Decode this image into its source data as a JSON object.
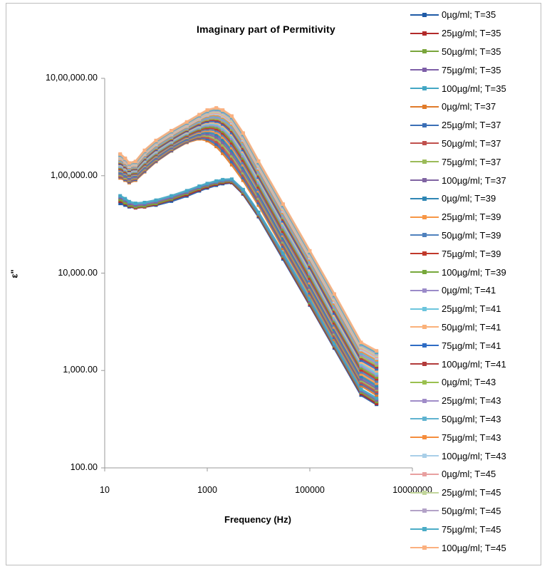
{
  "chart_data": {
    "type": "line",
    "title": "Imaginary part of Permitivity",
    "xlabel": "Frequency (Hz)",
    "ylabel": "ε\"",
    "x_scale": "log",
    "y_scale": "log",
    "xlim": [
      10,
      10000000
    ],
    "ylim": [
      100,
      1000000
    ],
    "x_ticks": [
      "10",
      "1000",
      "100000",
      "10000000"
    ],
    "y_ticks": [
      "100.00",
      "1,000.00",
      "10,000.00",
      "1,00,000.00",
      "10,00,000.00"
    ],
    "grid": false,
    "legend_position": "right",
    "x": [
      20,
      25,
      30,
      40,
      60,
      100,
      200,
      400,
      700,
      1000,
      1500,
      2000,
      3000,
      5000,
      10000,
      30000,
      100000,
      300000,
      1000000,
      2000000
    ],
    "series": [
      {
        "name": "0µg/ml; T=35",
        "color": "#1f5aa6",
        "values": [
          52000,
          50000,
          48000,
          47000,
          48000,
          50000,
          55000,
          62000,
          70000,
          75000,
          80000,
          83000,
          85000,
          65000,
          38000,
          14000,
          4700,
          1700,
          560,
          450
        ]
      },
      {
        "name": "25µg/ml; T=35",
        "color": "#b22a2a",
        "values": [
          55000,
          52000,
          49000,
          47000,
          48000,
          51000,
          57000,
          64000,
          72000,
          77000,
          82000,
          85000,
          86000,
          66000,
          39000,
          14500,
          4800,
          1750,
          580,
          460
        ]
      },
      {
        "name": "50µg/ml; T=35",
        "color": "#7aa53c",
        "values": [
          57000,
          53000,
          50000,
          48000,
          49000,
          52000,
          58000,
          66000,
          74000,
          79000,
          84000,
          87000,
          88000,
          68000,
          40000,
          15000,
          5000,
          1800,
          600,
          480
        ]
      },
      {
        "name": "75µg/ml; T=35",
        "color": "#7e5fa8",
        "values": [
          60000,
          56000,
          52000,
          50000,
          51000,
          54000,
          60000,
          68000,
          76000,
          81000,
          86000,
          89000,
          90000,
          70000,
          41000,
          15500,
          5200,
          1850,
          620,
          500
        ]
      },
      {
        "name": "100µg/ml; T=35",
        "color": "#44a7c4",
        "values": [
          62000,
          58000,
          54000,
          52000,
          53000,
          56000,
          62000,
          70000,
          78000,
          83000,
          88000,
          91000,
          92000,
          72000,
          42000,
          16000,
          5400,
          1900,
          640,
          520
        ]
      },
      {
        "name": "0µg/ml; T=37",
        "color": "#e07b2a",
        "values": [
          95000,
          90000,
          85000,
          90000,
          110000,
          140000,
          180000,
          220000,
          240000,
          230000,
          200000,
          170000,
          130000,
          90000,
          50000,
          18000,
          6000,
          2100,
          700,
          560
        ]
      },
      {
        "name": "25µg/ml; T=37",
        "color": "#3b6fb6",
        "values": [
          98000,
          92000,
          87000,
          92000,
          112000,
          142000,
          182000,
          224000,
          246000,
          240000,
          212000,
          182000,
          140000,
          96000,
          53000,
          19000,
          6300,
          2200,
          730,
          590
        ]
      },
      {
        "name": "50µg/ml; T=37",
        "color": "#c0504d",
        "values": [
          100000,
          94000,
          89000,
          94000,
          115000,
          145000,
          186000,
          228000,
          252000,
          250000,
          225000,
          195000,
          150000,
          102000,
          56000,
          20000,
          6600,
          2300,
          760,
          610
        ]
      },
      {
        "name": "75µg/ml; T=37",
        "color": "#9bbb59",
        "values": [
          103000,
          96000,
          91000,
          96000,
          118000,
          148000,
          190000,
          232000,
          258000,
          260000,
          238000,
          208000,
          160000,
          108000,
          59000,
          21000,
          6900,
          2400,
          790,
          640
        ]
      },
      {
        "name": "100µg/ml; T=37",
        "color": "#8064a2",
        "values": [
          106000,
          99000,
          93000,
          98000,
          121000,
          151000,
          194000,
          236000,
          264000,
          270000,
          250000,
          220000,
          170000,
          114000,
          62000,
          22000,
          7200,
          2500,
          820,
          660
        ]
      },
      {
        "name": "0µg/ml; T=39",
        "color": "#2f86b4",
        "values": [
          110000,
          103000,
          97000,
          102000,
          125000,
          156000,
          200000,
          242000,
          272000,
          282000,
          266000,
          236000,
          182000,
          122000,
          66000,
          23000,
          7600,
          2650,
          870,
          700
        ]
      },
      {
        "name": "25µg/ml; T=39",
        "color": "#f79646",
        "values": [
          113000,
          106000,
          99000,
          104000,
          128000,
          160000,
          204000,
          248000,
          280000,
          292000,
          280000,
          250000,
          195000,
          130000,
          70000,
          24500,
          8000,
          2800,
          920,
          740
        ]
      },
      {
        "name": "50µg/ml; T=39",
        "color": "#4f81bd",
        "values": [
          116000,
          108000,
          101000,
          106000,
          131000,
          164000,
          208000,
          254000,
          288000,
          302000,
          292000,
          264000,
          206000,
          137000,
          73000,
          25500,
          8400,
          2950,
          970,
          780
        ]
      },
      {
        "name": "75µg/ml; T=39",
        "color": "#c0392b",
        "values": [
          119000,
          111000,
          103000,
          108000,
          134000,
          167000,
          212000,
          260000,
          296000,
          312000,
          304000,
          276000,
          218000,
          145000,
          77000,
          27000,
          8900,
          3100,
          1020,
          820
        ]
      },
      {
        "name": "100µg/ml; T=39",
        "color": "#77a83b",
        "values": [
          122000,
          114000,
          105000,
          110000,
          137000,
          170000,
          216000,
          266000,
          304000,
          322000,
          316000,
          288000,
          230000,
          153000,
          81000,
          28500,
          9400,
          3250,
          1070,
          860
        ]
      },
      {
        "name": "0µg/ml; T=41",
        "color": "#9b8bc9",
        "values": [
          125000,
          116000,
          107000,
          112000,
          140000,
          174000,
          220000,
          272000,
          312000,
          332000,
          328000,
          300000,
          242000,
          161000,
          85000,
          30000,
          9900,
          3400,
          1120,
          900
        ]
      },
      {
        "name": "25µg/ml; T=41",
        "color": "#6cc5dd",
        "values": [
          128000,
          119000,
          109000,
          114000,
          143000,
          178000,
          225000,
          278000,
          320000,
          342000,
          340000,
          312000,
          254000,
          170000,
          89000,
          31500,
          10400,
          3550,
          1170,
          940
        ]
      },
      {
        "name": "50µg/ml; T=41",
        "color": "#fab17a",
        "values": [
          131000,
          121000,
          111000,
          116000,
          146000,
          182000,
          230000,
          284000,
          328000,
          352000,
          352000,
          326000,
          266000,
          178000,
          93000,
          33000,
          10900,
          3700,
          1220,
          990
        ]
      },
      {
        "name": "75µg/ml; T=41",
        "color": "#2e6cc4",
        "values": [
          134000,
          124000,
          113000,
          118000,
          149000,
          186000,
          235000,
          290000,
          336000,
          362000,
          364000,
          340000,
          278000,
          186000,
          97000,
          34500,
          11400,
          3900,
          1280,
          1040
        ]
      },
      {
        "name": "100µg/ml; T=41",
        "color": "#b23b3b",
        "values": [
          137000,
          126000,
          115000,
          120000,
          152000,
          190000,
          240000,
          296000,
          344000,
          372000,
          376000,
          352000,
          290000,
          194000,
          101000,
          36000,
          11900,
          4100,
          1340,
          1090
        ]
      },
      {
        "name": "0µg/ml; T=43",
        "color": "#9ac04f",
        "values": [
          140000,
          129000,
          117000,
          122000,
          155000,
          194000,
          245000,
          302000,
          352000,
          382000,
          388000,
          364000,
          302000,
          202000,
          105000,
          37500,
          12400,
          4300,
          1400,
          1140
        ]
      },
      {
        "name": "25µg/ml; T=43",
        "color": "#a08cc8",
        "values": [
          143000,
          131000,
          119000,
          124000,
          158000,
          198000,
          250000,
          308000,
          360000,
          392000,
          400000,
          376000,
          314000,
          210000,
          109000,
          39000,
          12900,
          4500,
          1460,
          1190
        ]
      },
      {
        "name": "50µg/ml; T=43",
        "color": "#5fb3d0",
        "values": [
          146000,
          134000,
          121000,
          126000,
          161000,
          202000,
          255000,
          314000,
          368000,
          402000,
          412000,
          388000,
          326000,
          218000,
          113000,
          40500,
          13400,
          4700,
          1520,
          1240
        ]
      },
      {
        "name": "75µg/ml; T=43",
        "color": "#f58d3d",
        "values": [
          149000,
          136000,
          123000,
          128000,
          164000,
          206000,
          260000,
          320000,
          376000,
          412000,
          424000,
          400000,
          338000,
          226000,
          117000,
          42000,
          13900,
          4900,
          1580,
          1290
        ]
      },
      {
        "name": "100µg/ml; T=43",
        "color": "#a9cfe8",
        "values": [
          152000,
          139000,
          125000,
          130000,
          167000,
          210000,
          265000,
          326000,
          384000,
          422000,
          436000,
          412000,
          350000,
          234000,
          121000,
          43500,
          14400,
          5100,
          1640,
          1340
        ]
      },
      {
        "name": "0µg/ml; T=45",
        "color": "#e8a0a0",
        "values": [
          155000,
          141000,
          127000,
          132000,
          170000,
          214000,
          270000,
          332000,
          392000,
          432000,
          448000,
          424000,
          362000,
          242000,
          125000,
          45000,
          14900,
          5300,
          1700,
          1390
        ]
      },
      {
        "name": "25µg/ml; T=45",
        "color": "#c2d69b",
        "values": [
          158000,
          144000,
          129000,
          134000,
          173000,
          218000,
          275000,
          338000,
          400000,
          442000,
          460000,
          436000,
          374000,
          250000,
          129000,
          46500,
          15400,
          5500,
          1760,
          1440
        ]
      },
      {
        "name": "50µg/ml; T=45",
        "color": "#b3a2c7",
        "values": [
          161000,
          146000,
          131000,
          136000,
          176000,
          222000,
          280000,
          344000,
          408000,
          452000,
          472000,
          448000,
          386000,
          258000,
          133000,
          48000,
          15900,
          5700,
          1820,
          1490
        ]
      },
      {
        "name": "75µg/ml; T=45",
        "color": "#4bacc6",
        "values": [
          164000,
          149000,
          133000,
          138000,
          179000,
          226000,
          285000,
          350000,
          416000,
          462000,
          484000,
          460000,
          398000,
          266000,
          137000,
          49500,
          16400,
          5900,
          1880,
          1540
        ]
      },
      {
        "name": "100µg/ml; T=45",
        "color": "#fbb07f",
        "values": [
          167000,
          151000,
          135000,
          140000,
          182000,
          230000,
          290000,
          356000,
          424000,
          472000,
          496000,
          472000,
          410000,
          274000,
          141000,
          51000,
          16900,
          6100,
          1940,
          1590
        ]
      }
    ]
  }
}
